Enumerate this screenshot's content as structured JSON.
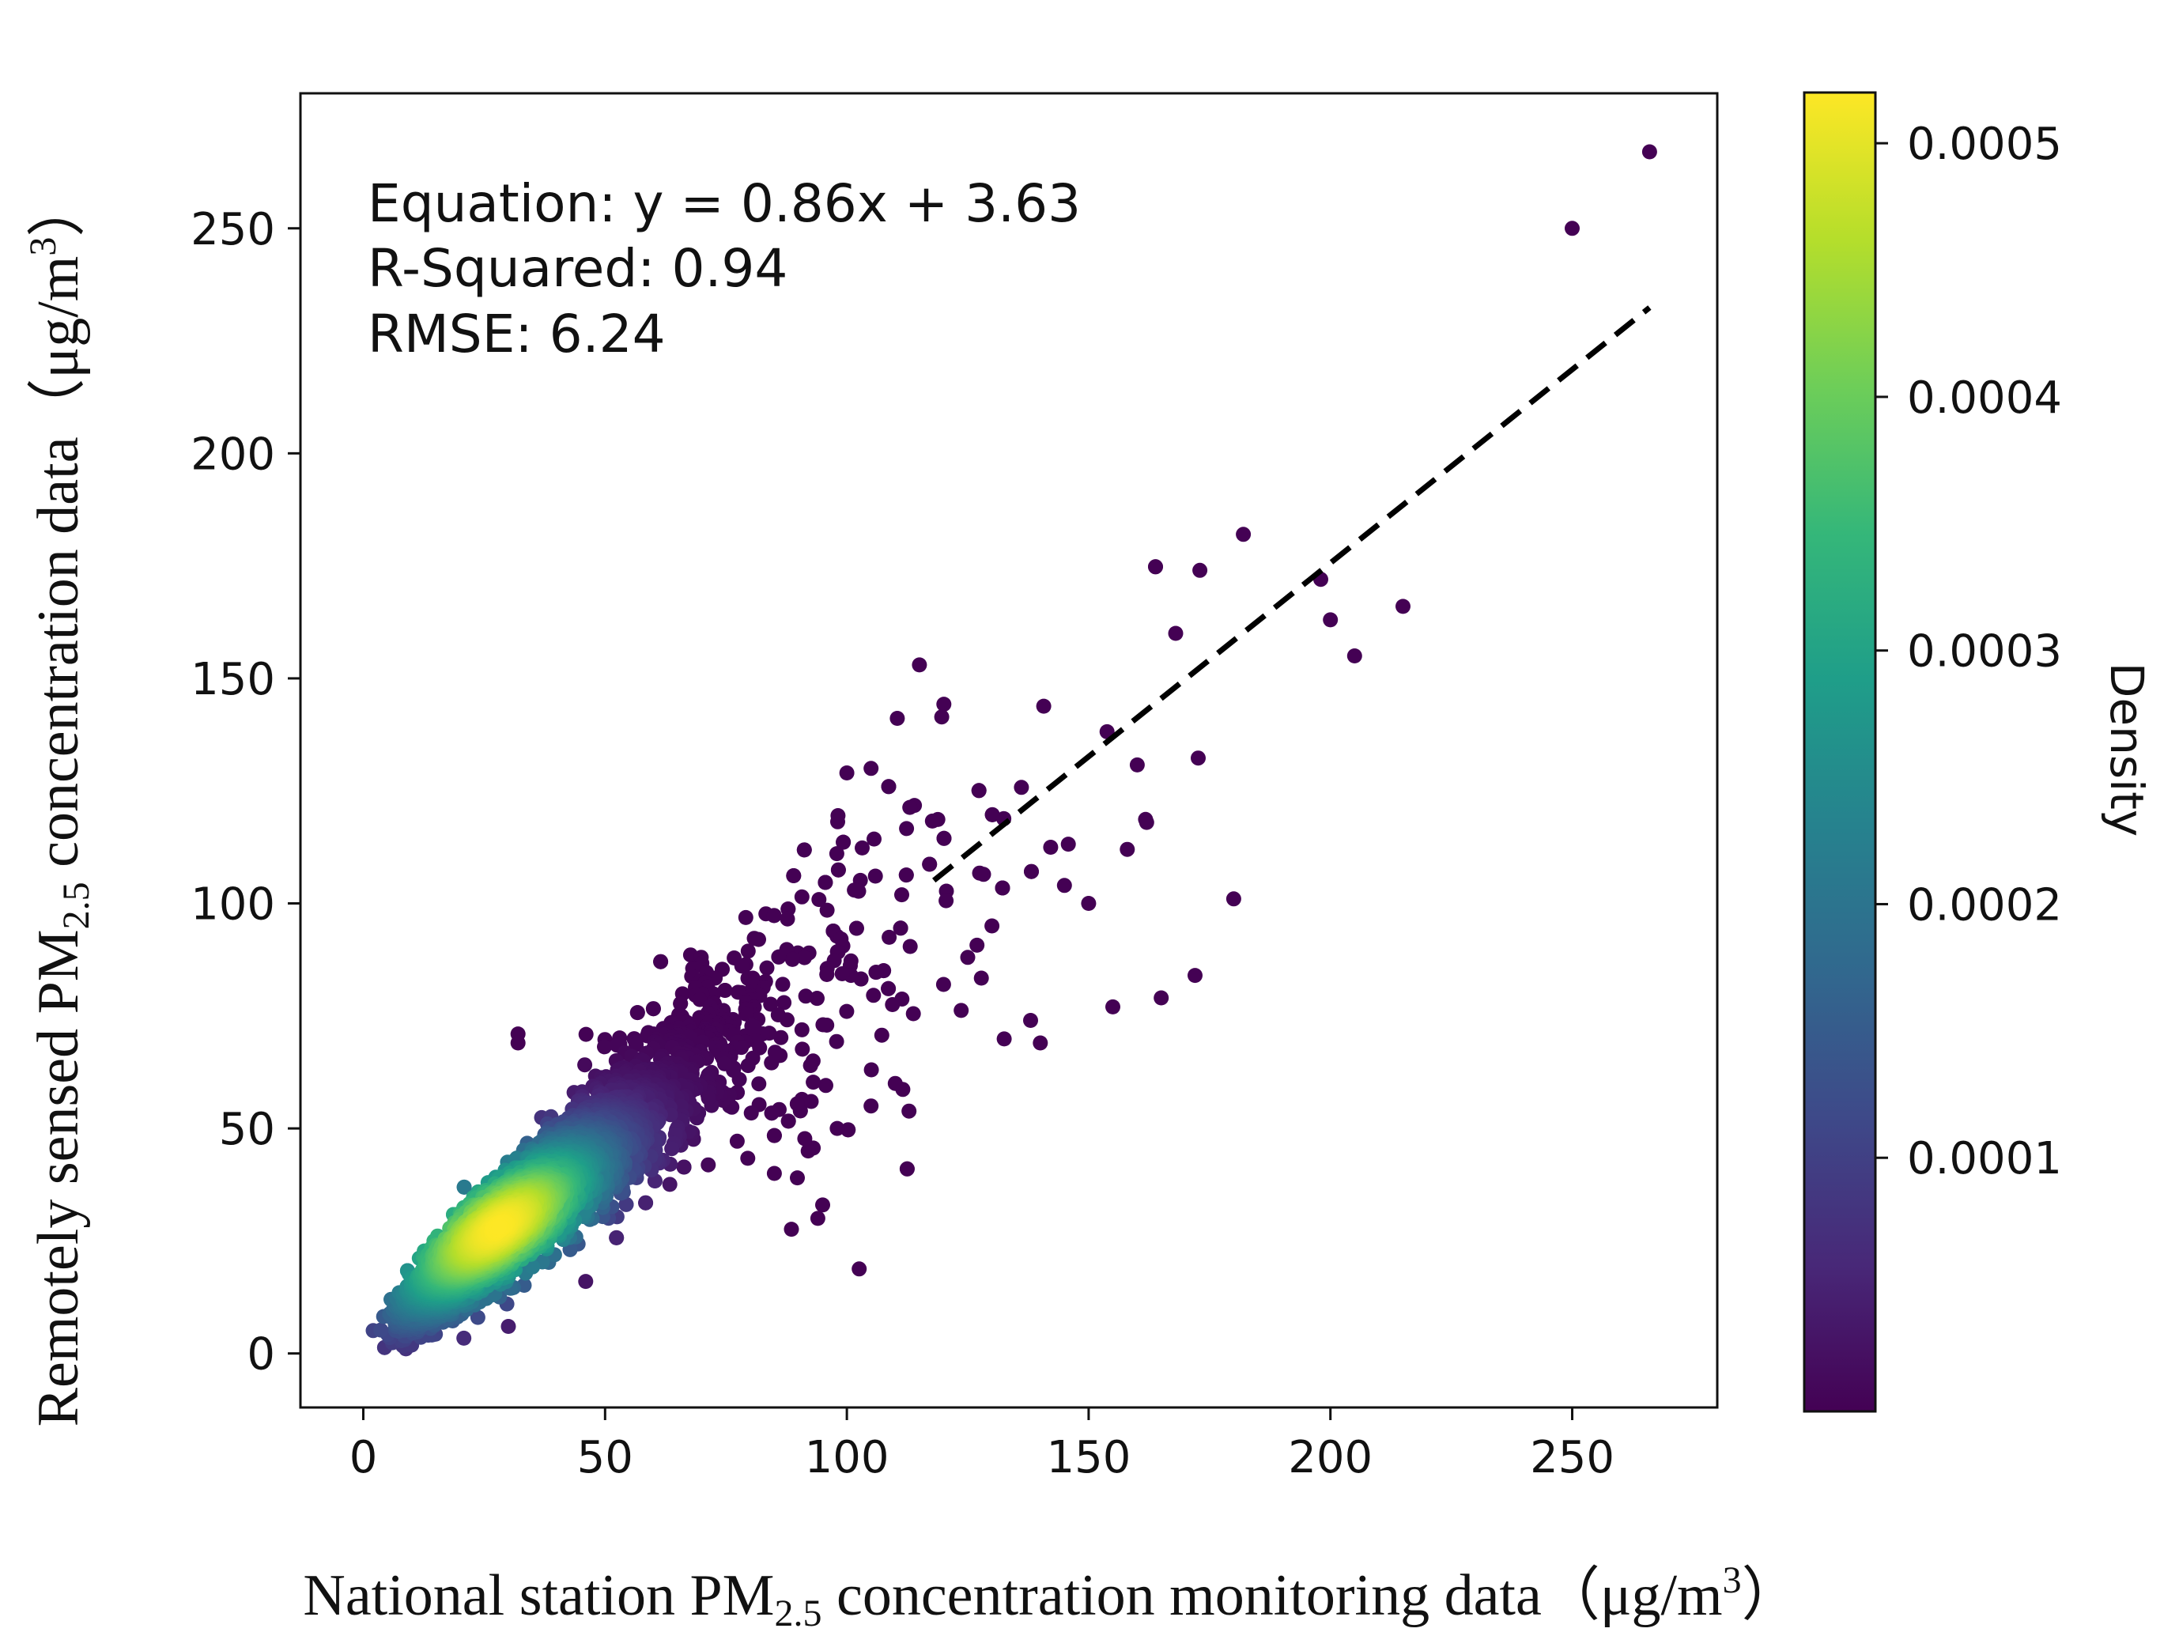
{
  "chart_data": {
    "type": "scatter",
    "subtype": "density-colored scatter with regression line",
    "x_range": [
      -13,
      280
    ],
    "y_range": [
      -12,
      280
    ],
    "x_ticks": [
      0,
      50,
      100,
      150,
      200,
      250
    ],
    "y_ticks": [
      0,
      50,
      100,
      150,
      200,
      250
    ],
    "x_tick_labels": [
      "0",
      "50",
      "100",
      "150",
      "200",
      "250"
    ],
    "y_tick_labels": [
      "0",
      "50",
      "100",
      "150",
      "200",
      "250"
    ],
    "xlabel": {
      "prefix": "National station PM",
      "subscript": "2.5",
      "suffix": " concentration monitoring data（μg/m",
      "superscript": "3",
      "closing": "）"
    },
    "ylabel": {
      "prefix": "Remotely sensed PM",
      "subscript": "2.5",
      "suffix": " concentration data（μg/m",
      "superscript": "3",
      "closing": "）"
    },
    "annotations": {
      "equation": "Equation: y = 0.86x + 3.63",
      "r_squared": "R-Squared: 0.94",
      "rmse": "RMSE: 6.24"
    },
    "regression": {
      "slope": 0.86,
      "intercept": 3.63,
      "x_start": 118,
      "x_end": 266,
      "style": "dashed",
      "color": "#000000"
    },
    "colorbar": {
      "label": "Density",
      "range": [
        0.0,
        0.00052
      ],
      "ticks": [
        0.0001,
        0.0002,
        0.0003,
        0.0004,
        0.0005
      ],
      "tick_labels": [
        "0.0001",
        "0.0002",
        "0.0003",
        "0.0004",
        "0.0005"
      ],
      "colormap": "viridis",
      "colors": [
        "#440154",
        "#482878",
        "#3e4989",
        "#31688e",
        "#26828e",
        "#1f9e89",
        "#35b779",
        "#6ece58",
        "#b5de2b",
        "#fde725"
      ]
    },
    "marker_color_low": "#440154",
    "approx_point_count": 6000,
    "density_model": {
      "center_x": 28,
      "center_y": 28,
      "peak_density": 0.00052
    },
    "outliers": [
      [
        266,
        267
      ],
      [
        250,
        250
      ],
      [
        215,
        166
      ],
      [
        205,
        155
      ],
      [
        200,
        163
      ],
      [
        198,
        172
      ],
      [
        182,
        182
      ],
      [
        173,
        174
      ],
      [
        168,
        160
      ],
      [
        180,
        101
      ],
      [
        172,
        84
      ],
      [
        165,
        79
      ],
      [
        155,
        77
      ],
      [
        140,
        69
      ],
      [
        138,
        74
      ],
      [
        115,
        153
      ],
      [
        105,
        130
      ],
      [
        100,
        129
      ],
      [
        95,
        33
      ],
      [
        94,
        30
      ],
      [
        60,
        71
      ],
      [
        32,
        71
      ],
      [
        32,
        69
      ],
      [
        46,
        16
      ],
      [
        30,
        6
      ],
      [
        150,
        100
      ],
      [
        158,
        112
      ],
      [
        145,
        104
      ],
      [
        162,
        118
      ],
      [
        130,
        95
      ],
      [
        125,
        88
      ],
      [
        120,
        82
      ],
      [
        110,
        60
      ],
      [
        105,
        55
      ],
      [
        98,
        50
      ],
      [
        92,
        45
      ],
      [
        85,
        40
      ]
    ]
  }
}
